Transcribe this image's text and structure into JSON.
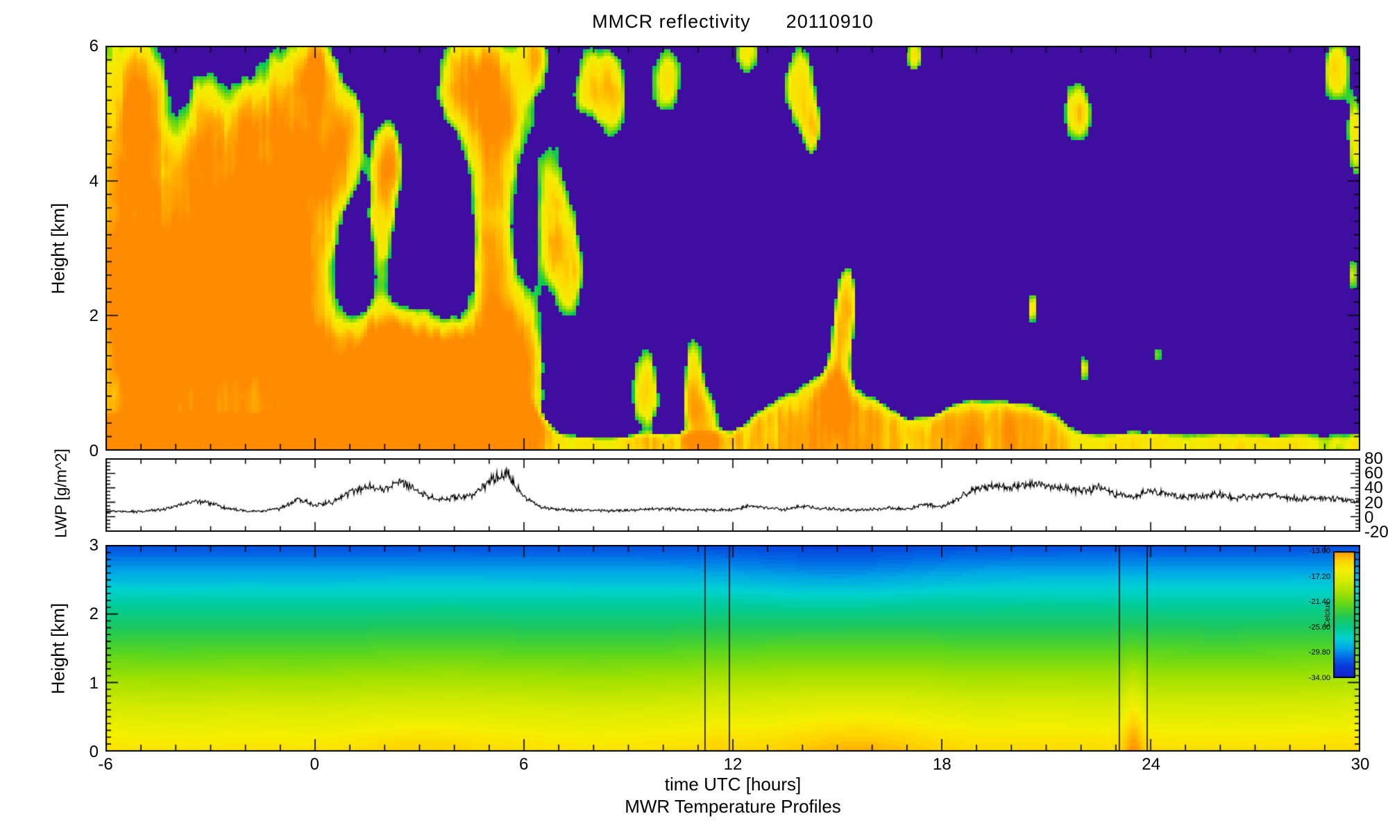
{
  "title": "MMCR reflectivity      20110910",
  "footer": "MWR Temperature Profiles",
  "xaxis": {
    "label": "time UTC [hours]",
    "lim": [
      -6,
      30
    ],
    "ticks": [
      {
        "v": -6,
        "label": "-6"
      },
      {
        "v": 0,
        "label": "0"
      },
      {
        "v": 6,
        "label": "6"
      },
      {
        "v": 12,
        "label": "12"
      },
      {
        "v": 18,
        "label": "18"
      },
      {
        "v": 24,
        "label": "24"
      },
      {
        "v": 30,
        "label": "30"
      }
    ]
  },
  "panels": {
    "reflectivity": {
      "ylabel": "Height [km]",
      "ylim": [
        0,
        6
      ],
      "yticks": [
        {
          "v": 0,
          "label": "0"
        },
        {
          "v": 2,
          "label": "2"
        },
        {
          "v": 4,
          "label": "4"
        },
        {
          "v": 6,
          "label": "6"
        }
      ]
    },
    "lwp": {
      "ylabel": "LWP [g/m^2]",
      "ylim": [
        -20,
        80
      ],
      "yticks_right": [
        {
          "v": 80,
          "label": "80"
        },
        {
          "v": 60,
          "label": "60"
        },
        {
          "v": 40,
          "label": "40"
        },
        {
          "v": 20,
          "label": "20"
        },
        {
          "v": 0,
          "label": "0"
        },
        {
          "v": -20,
          "label": "-20"
        }
      ]
    },
    "temperature": {
      "ylabel": "Height [km]",
      "ylim": [
        0,
        3
      ],
      "yticks": [
        {
          "v": 0,
          "label": "0"
        },
        {
          "v": 1,
          "label": "1"
        },
        {
          "v": 2,
          "label": "2"
        },
        {
          "v": 3,
          "label": "3"
        }
      ],
      "colorbar": {
        "title": "Celcius",
        "range_top": -13,
        "range_bottom": -34,
        "labels": [
          "-13.00",
          "-17.20",
          "-21.40",
          "-25.60",
          "-29.80",
          "-34.00"
        ]
      }
    }
  },
  "chart_data": [
    {
      "type": "heatmap",
      "title": "MMCR reflectivity",
      "date": "20110910",
      "xlabel": "time UTC [hours]",
      "xlim": [
        -6,
        30
      ],
      "ylabel": "Height [km]",
      "ylim": [
        0,
        6
      ],
      "background_color": "#3f0da0",
      "threshold": 0.45,
      "palette": [
        [
          0.45,
          "#00c85a"
        ],
        [
          0.53,
          "#8cdc00"
        ],
        [
          0.6,
          "#f0f000"
        ],
        [
          0.78,
          "#ffd800"
        ],
        [
          0.92,
          "#ffb000"
        ],
        [
          1.15,
          "#ff8c00"
        ]
      ],
      "cloud_blobs": [
        [
          -5.7,
          3.0,
          1.2,
          3.6,
          1.0
        ],
        [
          -4.6,
          1.6,
          1.0,
          1.9,
          1.0
        ],
        [
          -4.9,
          4.9,
          0.6,
          1.1,
          0.78
        ],
        [
          -3.6,
          2.2,
          1.1,
          2.4,
          1.05
        ],
        [
          -3.1,
          4.7,
          0.5,
          0.9,
          0.72
        ],
        [
          -2.4,
          1.8,
          1.0,
          2.1,
          1.08
        ],
        [
          -2.0,
          4.1,
          0.6,
          1.3,
          0.8
        ],
        [
          -1.2,
          2.6,
          0.9,
          2.6,
          0.97
        ],
        [
          -0.5,
          4.9,
          0.8,
          1.2,
          0.82
        ],
        [
          -0.2,
          2.0,
          0.8,
          2.2,
          0.92
        ],
        [
          0.1,
          5.6,
          0.5,
          0.6,
          0.75
        ],
        [
          0.5,
          4.2,
          0.5,
          1.0,
          0.72
        ],
        [
          1.0,
          4.6,
          0.45,
          0.8,
          0.75
        ],
        [
          1.9,
          3.4,
          0.4,
          1.2,
          0.78
        ],
        [
          2.2,
          4.3,
          0.45,
          0.7,
          0.7
        ],
        [
          1.2,
          0.8,
          1.6,
          0.95,
          1.02
        ],
        [
          3.0,
          0.8,
          1.7,
          0.95,
          1.06
        ],
        [
          4.6,
          0.9,
          1.3,
          1.0,
          1.02
        ],
        [
          2.3,
          1.5,
          1.2,
          0.5,
          0.88
        ],
        [
          5.1,
          2.8,
          0.55,
          2.2,
          0.85
        ],
        [
          5.2,
          5.0,
          1.0,
          1.1,
          0.85
        ],
        [
          4.2,
          5.5,
          0.8,
          0.7,
          0.8
        ],
        [
          5.9,
          1.2,
          0.6,
          1.2,
          0.92
        ],
        [
          6.8,
          3.4,
          0.55,
          1.3,
          0.75
        ],
        [
          7.4,
          2.6,
          0.4,
          0.9,
          0.7
        ],
        [
          7.9,
          5.5,
          0.6,
          0.65,
          0.75
        ],
        [
          8.6,
          5.2,
          0.45,
          0.7,
          0.7
        ],
        [
          6.3,
          5.8,
          0.45,
          0.5,
          0.72
        ],
        [
          10.1,
          5.5,
          0.55,
          0.65,
          0.75
        ],
        [
          12.4,
          5.9,
          0.5,
          0.45,
          0.7
        ],
        [
          13.9,
          5.4,
          0.55,
          0.75,
          0.8
        ],
        [
          14.3,
          4.7,
          0.3,
          0.5,
          0.62
        ],
        [
          9.5,
          0.9,
          0.45,
          0.8,
          0.75
        ],
        [
          10.9,
          0.9,
          0.35,
          0.9,
          0.8
        ],
        [
          11.3,
          0.4,
          0.5,
          0.5,
          0.72
        ],
        [
          15.1,
          1.5,
          0.35,
          0.95,
          0.85
        ],
        [
          15.3,
          2.3,
          0.25,
          0.5,
          0.65
        ],
        [
          17.2,
          5.9,
          0.3,
          0.4,
          0.68
        ],
        [
          20.6,
          2.1,
          0.18,
          0.35,
          0.65
        ],
        [
          21.9,
          5.0,
          0.5,
          0.6,
          0.78
        ],
        [
          22.1,
          1.2,
          0.15,
          0.3,
          0.6
        ],
        [
          24.2,
          1.4,
          0.15,
          0.3,
          0.6
        ],
        [
          27.6,
          1.3,
          0.12,
          0.28,
          0.58
        ],
        [
          29.3,
          5.6,
          0.45,
          0.6,
          0.76
        ],
        [
          29.9,
          4.6,
          0.35,
          0.7,
          0.72
        ],
        [
          29.8,
          2.6,
          0.2,
          0.45,
          0.62
        ]
      ],
      "surface_layer": [
        [
          -6,
          0.5,
          1.0
        ],
        [
          0,
          0.5,
          1.0
        ],
        [
          5,
          0.6,
          1.0
        ],
        [
          6,
          0.8,
          1.0
        ],
        [
          6.5,
          0.5,
          0.9
        ],
        [
          7,
          0.3,
          0.75
        ],
        [
          8,
          0.22,
          0.65
        ],
        [
          10,
          0.26,
          0.65
        ],
        [
          12,
          0.3,
          0.7
        ],
        [
          13,
          0.7,
          0.9
        ],
        [
          14,
          1.0,
          0.95
        ],
        [
          14.8,
          1.25,
          1.0
        ],
        [
          15.4,
          0.95,
          1.0
        ],
        [
          16,
          0.8,
          0.95
        ],
        [
          17,
          0.5,
          0.85
        ],
        [
          17.8,
          0.55,
          0.95
        ],
        [
          18.5,
          0.75,
          1.02
        ],
        [
          19.5,
          0.78,
          1.02
        ],
        [
          20.5,
          0.7,
          1.0
        ],
        [
          21.3,
          0.55,
          0.92
        ],
        [
          21.8,
          0.35,
          0.75
        ],
        [
          22.5,
          0.28,
          0.65
        ],
        [
          23.5,
          0.32,
          0.7
        ],
        [
          24.5,
          0.3,
          0.65
        ],
        [
          25.5,
          0.28,
          0.63
        ],
        [
          26.5,
          0.3,
          0.65
        ],
        [
          27.5,
          0.26,
          0.62
        ],
        [
          28.5,
          0.3,
          0.63
        ],
        [
          29.5,
          0.28,
          0.65
        ],
        [
          30,
          0.3,
          0.66
        ]
      ]
    },
    {
      "type": "line",
      "title": "LWP",
      "ylabel": "LWP [g/m^2]",
      "ylim": [
        -20,
        80
      ],
      "line_color": "#000000",
      "x": [
        -6,
        -5.5,
        -5,
        -4.5,
        -4,
        -3.5,
        -3,
        -2.5,
        -2,
        -1.5,
        -1,
        -0.5,
        0,
        0.5,
        1,
        1.5,
        2,
        2.5,
        3,
        3.5,
        4,
        4.5,
        5,
        5.5,
        6,
        6.5,
        7,
        7.5,
        8,
        8.5,
        9,
        9.5,
        10,
        10.5,
        11,
        11.5,
        12,
        12.5,
        13,
        13.5,
        14,
        14.5,
        15,
        15.5,
        16,
        16.5,
        17,
        17.5,
        18,
        18.5,
        19,
        19.5,
        20,
        20.5,
        21,
        21.5,
        22,
        22.5,
        23,
        23.5,
        24,
        24.5,
        25,
        25.5,
        26,
        26.5,
        27,
        27.5,
        28,
        28.5,
        29,
        29.5,
        30
      ],
      "y": [
        8,
        7,
        7,
        9,
        14,
        22,
        19,
        11,
        8,
        8,
        11,
        24,
        17,
        19,
        33,
        42,
        38,
        50,
        33,
        24,
        26,
        29,
        48,
        62,
        28,
        13,
        10,
        9,
        9,
        8,
        9,
        10,
        11,
        10,
        9,
        9,
        10,
        15,
        12,
        10,
        15,
        12,
        10,
        9,
        10,
        12,
        10,
        17,
        13,
        26,
        38,
        44,
        40,
        46,
        43,
        39,
        36,
        40,
        31,
        28,
        36,
        31,
        26,
        29,
        31,
        26,
        29,
        31,
        26,
        24,
        27,
        23,
        21
      ]
    },
    {
      "type": "heatmap",
      "title": "MWR Temperature Profiles",
      "xlabel": "time UTC [hours]",
      "xlim": [
        -6,
        30
      ],
      "ylabel": "Height [km]",
      "ylim": [
        0,
        3
      ],
      "units": "Celcius",
      "top_temp": -31.5,
      "profile_exponent": 1.18,
      "surface_temp": [
        [
          -6,
          -15.2
        ],
        [
          -4,
          -15.4
        ],
        [
          -2,
          -15.2
        ],
        [
          0,
          -15.3
        ],
        [
          2,
          -15.0
        ],
        [
          4,
          -14.9
        ],
        [
          6,
          -15.1
        ],
        [
          8,
          -15.3
        ],
        [
          10,
          -15.1
        ],
        [
          12,
          -14.8
        ],
        [
          14,
          -14.6
        ],
        [
          16,
          -14.5
        ],
        [
          17.5,
          -14.6
        ],
        [
          19,
          -14.9
        ],
        [
          21,
          -14.8
        ],
        [
          22.5,
          -14.9
        ],
        [
          24,
          -15.0
        ],
        [
          26,
          -15.1
        ],
        [
          28,
          -15.0
        ],
        [
          30,
          -14.8
        ]
      ],
      "anomalies": [
        {
          "t": 23.5,
          "h": 0,
          "st": 0.28,
          "sh": 1.1,
          "amp": 2.2
        },
        {
          "t": 15.5,
          "h": 0,
          "st": 1.8,
          "sh": 0.6,
          "amp": 0.9
        },
        {
          "t": 3.0,
          "h": 0,
          "st": 1.5,
          "sh": 0.35,
          "amp": 0.5
        },
        {
          "t": 11.55,
          "h": 0,
          "st": 0.35,
          "sh": 0.8,
          "amp": 0.5
        },
        {
          "t": 15.0,
          "h": 2.6,
          "st": 3.0,
          "sh": 0.55,
          "amp": -0.8
        }
      ],
      "gap_lines": [
        11.2,
        11.9,
        23.1,
        23.9
      ],
      "color_stops": [
        [
          -34,
          "#1420c8"
        ],
        [
          -32,
          "#0a3cdc"
        ],
        [
          -30.5,
          "#006ee6"
        ],
        [
          -29,
          "#00aae6"
        ],
        [
          -27.5,
          "#00d2d2"
        ],
        [
          -26,
          "#00cd9b"
        ],
        [
          -24,
          "#1ec85a"
        ],
        [
          -22,
          "#5ad71e"
        ],
        [
          -20,
          "#a0e100"
        ],
        [
          -18,
          "#d2eb00"
        ],
        [
          -16,
          "#f6f000"
        ],
        [
          -14.5,
          "#ffd200"
        ],
        [
          -13,
          "#ff9600"
        ]
      ]
    }
  ]
}
